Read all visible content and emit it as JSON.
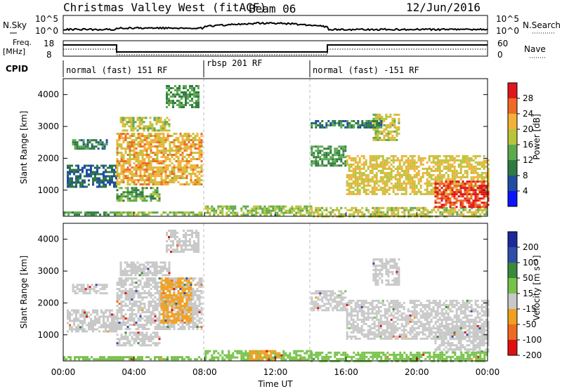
{
  "header": {
    "title": "Christmas Valley West (fitACF)",
    "beam": "Beam 06",
    "date": "12/Jun/2016"
  },
  "top_panels": {
    "nsky_label": "N.Sky",
    "nsearch_label": "N.Search",
    "count_ticks": [
      "10^5",
      "10^0"
    ],
    "freq_label_1": "Freq.",
    "freq_label_2": "[MHz]",
    "freq_ticks": [
      "18",
      "8"
    ],
    "nave_label": "Nave",
    "nave_ticks": [
      "60",
      "0"
    ],
    "cpid_label": "CPID",
    "cpid_segments": [
      {
        "text": "normal (fast) 151 RF",
        "start_hour": 0
      },
      {
        "text": "rbsp 201 RF",
        "start_hour": 8
      },
      {
        "text": "normal (fast) -151 RF",
        "start_hour": 14
      }
    ]
  },
  "chart_data": [
    {
      "type": "heatmap",
      "name": "Power",
      "ylabel": "Slant Range [km]",
      "xlabel": "Time UT",
      "xlim_hours": [
        0,
        24
      ],
      "ylim_km": [
        180,
        4500
      ],
      "x_ticks": [
        "00:00",
        "04:00",
        "08:00",
        "12:00",
        "16:00",
        "20:00",
        "00:00"
      ],
      "y_ticks": [
        "1000",
        "2000",
        "3000",
        "4000"
      ],
      "colorbar": {
        "label": "Power [dB]",
        "ticks": [
          "4",
          "8",
          "12",
          "16",
          "20",
          "24",
          "28"
        ],
        "colors": [
          "#0a14ff",
          "#1f4ea0",
          "#2f7a40",
          "#5caa4e",
          "#b9c43a",
          "#f2b23a",
          "#ee6a25",
          "#e0161c"
        ]
      },
      "regions": [
        {
          "t": [
            0.0,
            3.0
          ],
          "r": [
            200,
            330
          ],
          "level": 12
        },
        {
          "t": [
            3.0,
            7.8
          ],
          "r": [
            200,
            330
          ],
          "level": 16
        },
        {
          "t": [
            8.0,
            14.0
          ],
          "r": [
            200,
            520
          ],
          "level": 16
        },
        {
          "t": [
            14.0,
            24.0
          ],
          "r": [
            200,
            470
          ],
          "level": 18
        },
        {
          "t": [
            0.2,
            3.0
          ],
          "r": [
            1100,
            1800
          ],
          "level": 8
        },
        {
          "t": [
            0.5,
            2.5
          ],
          "r": [
            2300,
            2600
          ],
          "level": 10
        },
        {
          "t": [
            3.0,
            7.8
          ],
          "r": [
            1200,
            2800
          ],
          "level": 22
        },
        {
          "t": [
            3.0,
            5.5
          ],
          "r": [
            700,
            1100
          ],
          "level": 14
        },
        {
          "t": [
            3.2,
            6.0
          ],
          "r": [
            2900,
            3300
          ],
          "level": 18
        },
        {
          "t": [
            5.8,
            7.6
          ],
          "r": [
            3600,
            4300
          ],
          "level": 12
        },
        {
          "t": [
            14.0,
            16.0
          ],
          "r": [
            1800,
            2400
          ],
          "level": 12
        },
        {
          "t": [
            16.0,
            24.0
          ],
          "r": [
            900,
            2100
          ],
          "level": 20
        },
        {
          "t": [
            21.0,
            24.0
          ],
          "r": [
            450,
            1300
          ],
          "level": 28
        },
        {
          "t": [
            17.5,
            19.0
          ],
          "r": [
            2600,
            3400
          ],
          "level": 18
        },
        {
          "t": [
            14.0,
            18.0
          ],
          "r": [
            3000,
            3200
          ],
          "level": 10
        }
      ]
    },
    {
      "type": "heatmap",
      "name": "Velocity",
      "ylabel": "Slant Range [km]",
      "xlabel": "Time UT",
      "xlim_hours": [
        0,
        24
      ],
      "ylim_km": [
        180,
        4500
      ],
      "x_ticks": [
        "00:00",
        "04:00",
        "08:00",
        "12:00",
        "16:00",
        "20:00",
        "00:00"
      ],
      "y_ticks": [
        "1000",
        "2000",
        "3000",
        "4000"
      ],
      "colorbar": {
        "label": "Velocity [m s⁻¹]",
        "ticks": [
          "200",
          "100",
          "50",
          "15",
          "-15",
          "-50",
          "-100",
          "-200"
        ],
        "colors": [
          "#1b2a9b",
          "#2f4fa8",
          "#3a8a3a",
          "#77c24a",
          "#c8c8c8",
          "#f0a020",
          "#ee6a20",
          "#e01010"
        ]
      },
      "regions": [
        {
          "t": [
            0.2,
            3.0
          ],
          "r": [
            1100,
            1800
          ],
          "level": 0
        },
        {
          "t": [
            0.5,
            2.5
          ],
          "r": [
            2300,
            2600
          ],
          "level": 0
        },
        {
          "t": [
            3.0,
            7.8
          ],
          "r": [
            1200,
            2800
          ],
          "level": 0
        },
        {
          "t": [
            3.0,
            5.5
          ],
          "r": [
            700,
            1100
          ],
          "level": 0
        },
        {
          "t": [
            3.2,
            6.0
          ],
          "r": [
            2900,
            3300
          ],
          "level": 0
        },
        {
          "t": [
            5.8,
            7.6
          ],
          "r": [
            3600,
            4300
          ],
          "level": 0
        },
        {
          "t": [
            14.0,
            16.0
          ],
          "r": [
            1800,
            2400
          ],
          "level": 0
        },
        {
          "t": [
            16.0,
            24.0
          ],
          "r": [
            900,
            2100
          ],
          "level": 0
        },
        {
          "t": [
            21.0,
            24.0
          ],
          "r": [
            450,
            1300
          ],
          "level": 0
        },
        {
          "t": [
            17.5,
            19.0
          ],
          "r": [
            2600,
            3400
          ],
          "level": 0
        },
        {
          "t": [
            8.0,
            14.0
          ],
          "r": [
            200,
            520
          ],
          "level": 30
        },
        {
          "t": [
            0.0,
            7.8
          ],
          "r": [
            200,
            330
          ],
          "level": 30
        },
        {
          "t": [
            14.0,
            24.0
          ],
          "r": [
            200,
            470
          ],
          "level": 30
        },
        {
          "t": [
            10.5,
            12.2
          ],
          "r": [
            220,
            520
          ],
          "level": -40
        },
        {
          "t": [
            5.5,
            7.2
          ],
          "r": [
            1400,
            2800
          ],
          "level": -40
        }
      ]
    }
  ]
}
